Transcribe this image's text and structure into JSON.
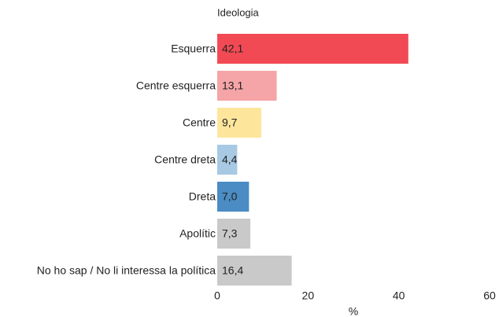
{
  "chart_data": {
    "type": "bar",
    "orientation": "horizontal",
    "title": "Ideologia",
    "categories": [
      "Esquerra",
      "Centre esquerra",
      "Centre",
      "Centre dreta",
      "Dreta",
      "Apolític",
      "No ho sap / No li interessa la política"
    ],
    "values": [
      42.1,
      13.1,
      9.7,
      4.4,
      7.0,
      7.3,
      16.4
    ],
    "value_labels": [
      "42,1",
      "13,1",
      "9,7",
      "4,4",
      "7,0",
      "7,3",
      "16,4"
    ],
    "colors": [
      "#f24a54",
      "#f5a5a8",
      "#fde59c",
      "#a7c9e3",
      "#4a8cc3",
      "#c9c9c9",
      "#c9c9c9"
    ],
    "xlim": [
      0,
      60
    ],
    "xticks": [
      0,
      20,
      40,
      60
    ],
    "xlabel": "%",
    "grid": false
  }
}
